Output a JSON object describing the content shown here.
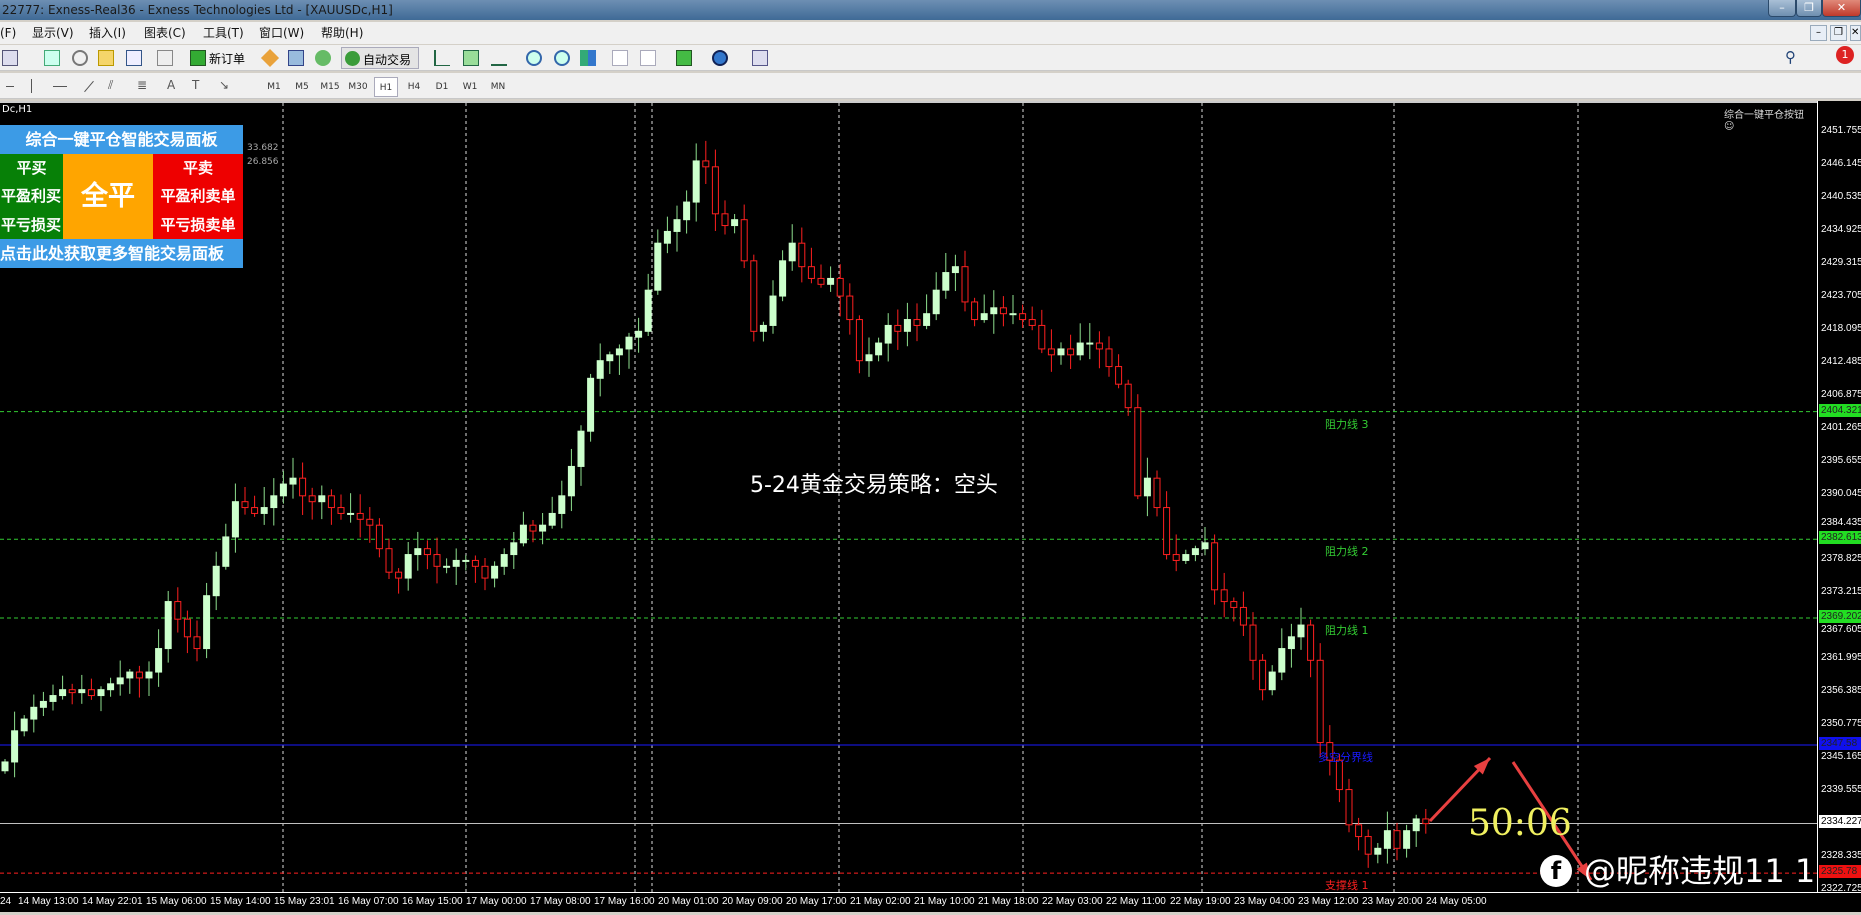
{
  "window": {
    "title": "22777: Exness-Real36 - Exness Technologies Ltd - [XAUUSDc,H1]",
    "minimize": "–",
    "restore": "❐",
    "close": "✕"
  },
  "menu": [
    "(F)",
    "显示(V)",
    "插入(I)",
    "图表(C)",
    "工具(T)",
    "窗口(W)",
    "帮助(H)"
  ],
  "toolbar": {
    "new_order": "新订单",
    "auto_trading": "自动交易",
    "notification_count": "1",
    "timeframes": [
      "M1",
      "M5",
      "M15",
      "M30",
      "H1",
      "H4",
      "D1",
      "W1",
      "MN"
    ],
    "active_timeframe": "H1"
  },
  "chart": {
    "symbol_label": "Dc,H1",
    "top_right_button": "综合一键平仓按钮",
    "center_text": "5-24黄金交易策略：空头",
    "countdown": "50:06",
    "watermark": "@昵称违规11 1",
    "colors": {
      "bull": "#ccffcc",
      "bear": "#ff2020",
      "resistance": "#33cc33",
      "divider": "#1a1aff",
      "support": "#ff2020",
      "bid": "#c0c0c0"
    }
  },
  "panel": {
    "title": "综合一键平仓智能交易面板",
    "close_buy": "平买",
    "close_all": "全平",
    "close_sell": "平卖",
    "close_profit_buy": "平盈利买单",
    "close_profit_sell": "平盈利卖单",
    "close_loss_buy": "平亏损买单",
    "close_loss_sell": "平亏损卖单",
    "footer": "点击此处获取更多智能交易面板",
    "overlay_values": [
      "33.682",
      "26.856"
    ]
  },
  "levels": [
    {
      "label": "阻力线 3",
      "price": 2404.321,
      "tag": "2404.321",
      "type": "resistance"
    },
    {
      "label": "阻力线 2",
      "price": 2382.613,
      "tag": "2382.613",
      "type": "resistance"
    },
    {
      "label": "阻力线 1",
      "price": 2369.202,
      "tag": "2369.202",
      "type": "resistance"
    },
    {
      "label": "多空分界线",
      "price": 2347.58,
      "tag": "2347.58",
      "type": "divider"
    },
    {
      "label": "",
      "price": 2334.227,
      "tag": "2334.227",
      "type": "bid"
    },
    {
      "label": "支撑线 1",
      "price": 2325.78,
      "tag": "2325.78",
      "type": "support"
    }
  ],
  "chart_data": {
    "type": "candlestick",
    "ylim": [
      2322.725,
      2451.755
    ],
    "price_ticks": [
      "2451.755",
      "2446.145",
      "2440.535",
      "2434.925",
      "2429.315",
      "2423.705",
      "2418.095",
      "2412.485",
      "2406.875",
      "2401.265",
      "2395.655",
      "2390.045",
      "2384.435",
      "2378.825",
      "2373.215",
      "2367.605",
      "2361.995",
      "2356.385",
      "2350.775",
      "2345.165",
      "2339.555",
      "2328.335",
      "2322.725"
    ],
    "time_ticks": [
      "24",
      "14 May 13:00",
      "14 May 22:01",
      "15 May 06:00",
      "15 May 14:00",
      "15 May 23:01",
      "16 May 07:00",
      "16 May 15:00",
      "17 May 00:00",
      "17 May 08:00",
      "17 May 16:00",
      "20 May 01:00",
      "20 May 09:00",
      "20 May 17:00",
      "21 May 02:00",
      "21 May 10:00",
      "21 May 18:00",
      "22 May 03:00",
      "22 May 11:00",
      "22 May 19:00",
      "23 May 04:00",
      "23 May 12:00",
      "23 May 20:00",
      "24 May 05:00"
    ],
    "closes": [
      2344.7,
      2350,
      2352,
      2354,
      2355,
      2356,
      2357,
      2356.5,
      2357,
      2356,
      2357,
      2358,
      2359,
      2360,
      2359,
      2360,
      2364,
      2372,
      2369,
      2366,
      2364,
      2373,
      2378,
      2383,
      2389,
      2388,
      2387,
      2388,
      2390,
      2392,
      2393,
      2390,
      2389,
      2390,
      2388,
      2387,
      2387,
      2386,
      2385,
      2381,
      2377,
      2376,
      2380,
      2381,
      2380,
      2378,
      2378,
      2379,
      2379,
      2378,
      2376,
      2378,
      2380,
      2382,
      2385,
      2384,
      2385,
      2387,
      2390,
      2395,
      2401,
      2410,
      2413,
      2414,
      2415,
      2417,
      2418,
      2425,
      2433,
      2435,
      2437,
      2440,
      2447,
      2446,
      2438,
      2436,
      2437,
      2430,
      2418,
      2419,
      2424,
      2430,
      2433,
      2429,
      2427,
      2426,
      2427,
      2424,
      2420,
      2413,
      2414,
      2416,
      2419,
      2418,
      2420,
      2419,
      2421,
      2425,
      2428,
      2429,
      2423,
      2420,
      2421,
      2422,
      2421,
      2421,
      2420,
      2419,
      2415,
      2414,
      2415,
      2414,
      2416,
      2416,
      2415,
      2412,
      2409,
      2405,
      2390,
      2393,
      2388,
      2380,
      2379,
      2380,
      2381,
      2382,
      2374,
      2372,
      2371,
      2368,
      2362,
      2357,
      2360,
      2364,
      2366,
      2368,
      2362,
      2348,
      2345,
      2340,
      2334,
      2332,
      2329,
      2330,
      2333,
      2330,
      2333,
      2335,
      2334.2
    ]
  }
}
